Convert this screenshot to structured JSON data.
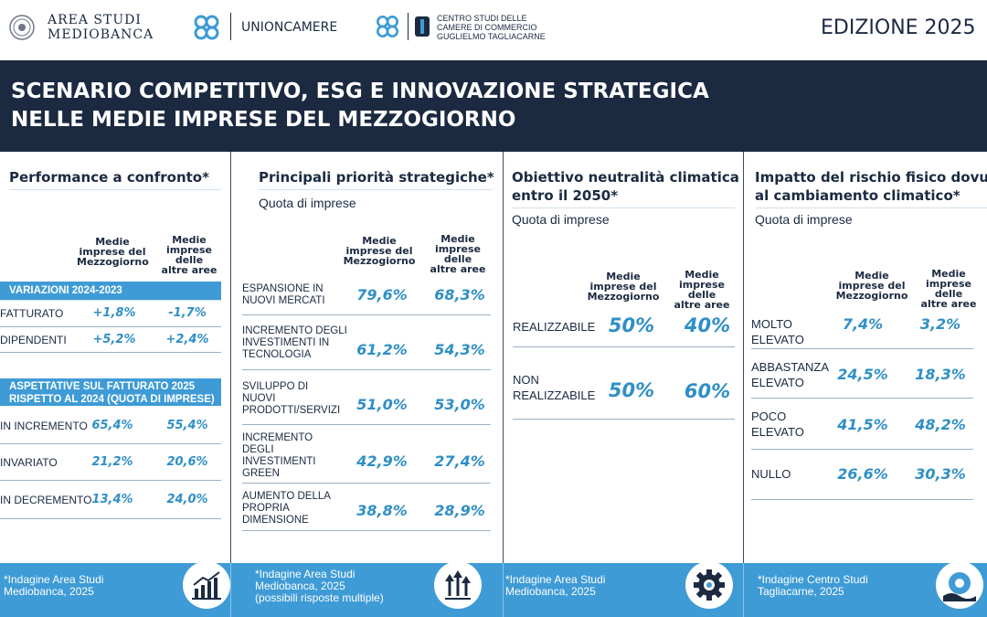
{
  "header": {
    "logo1": {
      "line1": "AREA STUDI",
      "line2": "MEDIOBANCA"
    },
    "logo2": {
      "name": "UNIONCAMERE"
    },
    "logo3": {
      "line1": "CENTRO STUDI DELLE",
      "line2": "CAMERE DI COMMERCIO",
      "line3": "GUGLIELMO TAGLIACARNE"
    },
    "edition": "EDIZIONE 2025"
  },
  "title": {
    "line1": "SCENARIO COMPETITIVO, ESG E INNOVAZIONE STRATEGICA",
    "line2": "NELLE MEDIE IMPRESE DEL MEZZOGIORNO"
  },
  "col_headers": {
    "south": [
      "Medie",
      "imprese del",
      "Mezzogiorno"
    ],
    "other": [
      "Medie",
      "imprese delle",
      "altre aree"
    ]
  },
  "panel1": {
    "title": "Performance a confronto*",
    "var_header": "VARIAZIONI 2024-2023",
    "var_rows": [
      {
        "label": "FATTURATO",
        "south": "+1,8%",
        "other": "-1,7%"
      },
      {
        "label": "DIPENDENTI",
        "south": "+5,2%",
        "other": "+2,4%"
      }
    ],
    "asp_header": [
      "ASPETTATIVE SUL FATTURATO 2025",
      "RISPETTO AL 2024 (QUOTA DI IMPRESE)"
    ],
    "asp_rows": [
      {
        "label": "IN INCREMENTO",
        "south": "65,4%",
        "other": "55,4%"
      },
      {
        "label": "INVARIATO",
        "south": "21,2%",
        "other": "20,6%"
      },
      {
        "label": "IN DECREMENTO",
        "south": "13,4%",
        "other": "24,0%"
      }
    ]
  },
  "panel2": {
    "title": "Principali priorità strategiche*",
    "subtitle": "Quota di imprese",
    "rows": [
      {
        "label": [
          "ESPANSIONE IN",
          "NUOVI MERCATI"
        ],
        "south": "79,6%",
        "other": "68,3%"
      },
      {
        "label": [
          "INCREMENTO DEGLI",
          "INVESTIMENTI IN",
          "TECNOLOGIA"
        ],
        "south": "61,2%",
        "other": "54,3%"
      },
      {
        "label": [
          "SVILUPPO DI",
          "NUOVI",
          "PRODOTTI/SERVIZI"
        ],
        "south": "51,0%",
        "other": "53,0%"
      },
      {
        "label": [
          "INCREMENTO",
          "DEGLI",
          "INVESTIMENTI",
          "GREEN"
        ],
        "south": "42,9%",
        "other": "27,4%"
      },
      {
        "label": [
          "AUMENTO DELLA",
          "PROPRIA",
          "DIMENSIONE"
        ],
        "south": "38,8%",
        "other": "28,9%"
      }
    ]
  },
  "panel3": {
    "title": [
      "Obiettivo neutralità climatica",
      "entro il 2050*"
    ],
    "subtitle": "Quota di imprese",
    "rows": [
      {
        "label": [
          "REALIZZABILE"
        ],
        "south": "50%",
        "other": "40%"
      },
      {
        "label": [
          "NON",
          "REALIZZABILE"
        ],
        "south": "50%",
        "other": "60%"
      }
    ]
  },
  "panel4": {
    "title": [
      "Impatto del  rischio fisico dovuto",
      "al cambiamento climatico*"
    ],
    "subtitle": "Quota di imprese",
    "rows": [
      {
        "label": [
          "MOLTO",
          "ELEVATO"
        ],
        "south": "7,4%",
        "other": "3,2%"
      },
      {
        "label": [
          "ABBASTANZA",
          "ELEVATO"
        ],
        "south": "24,5%",
        "other": "18,3%"
      },
      {
        "label": [
          "POCO",
          "ELEVATO"
        ],
        "south": "41,5%",
        "other": "48,2%"
      },
      {
        "label": [
          "NULLO"
        ],
        "south": "26,6%",
        "other": "30,3%"
      }
    ]
  },
  "footer": {
    "f1": [
      "*Indagine Area Studi",
      "Mediobanca, 2025"
    ],
    "f2": [
      "*Indagine Area Studi",
      "Mediobanca, 2025",
      "(possibili risposte multiple)"
    ],
    "f3": [
      "*Indagine Area Studi",
      "Mediobanca, 2025"
    ],
    "f4": [
      "*Indagine Centro Studi",
      "Tagliacarne, 2025"
    ],
    "icons": [
      "bar-chart-icon",
      "growth-arrows-icon",
      "gear-icon",
      "climate-gear-icon"
    ]
  },
  "colors": {
    "navy": "#1b2a41",
    "accent": "#2f8fc6",
    "footer": "#3e9bd6"
  }
}
